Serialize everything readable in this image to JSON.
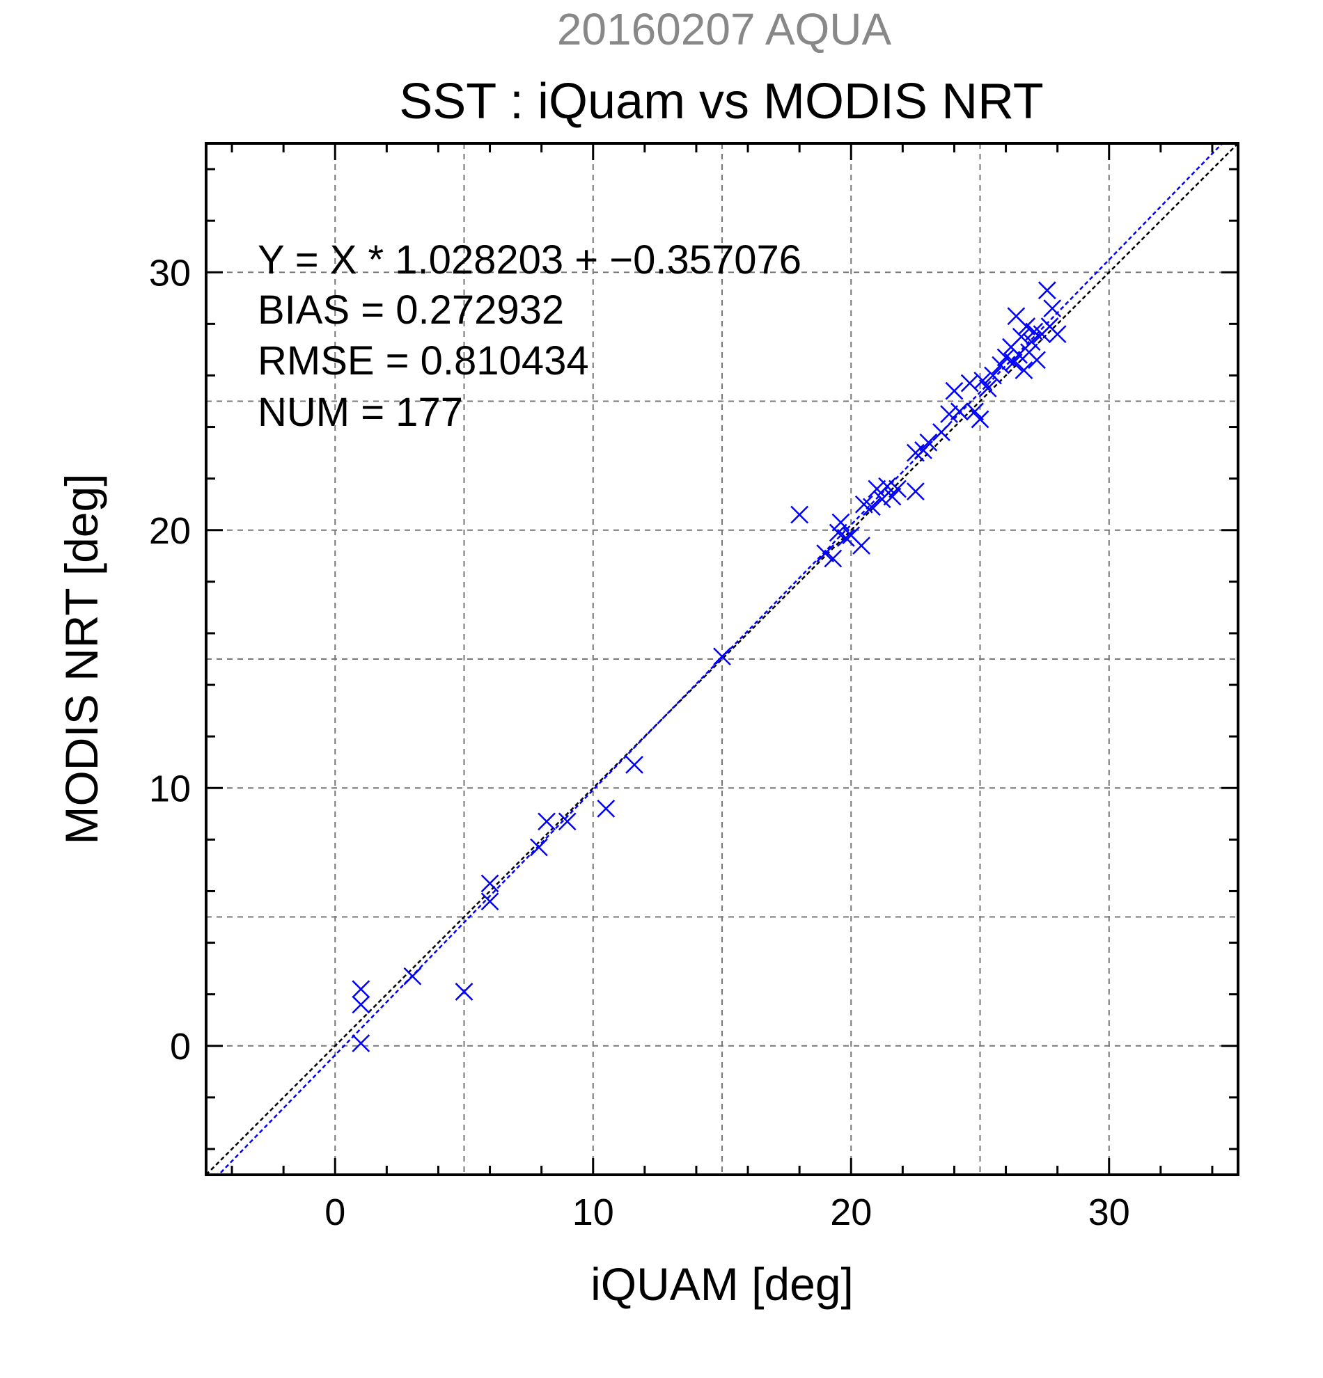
{
  "header": {
    "date_line": "20160207 AQUA",
    "title": "SST : iQuam vs MODIS NRT"
  },
  "stats": {
    "equation": "Y = X * 1.028203 + −0.357076",
    "bias": "BIAS = 0.272932",
    "rmse": "RMSE = 0.810434",
    "num": "NUM = 177"
  },
  "colors": {
    "points": "#0000ff",
    "fit_line": "#0000ff",
    "identity_line": "#000000",
    "title_gray": "#888888"
  },
  "chart_data": {
    "type": "scatter",
    "title": "SST : iQuam vs MODIS NRT",
    "subtitle": "20160207 AQUA",
    "xlabel": "iQUAM [deg]",
    "ylabel": "MODIS NRT [deg]",
    "xlim": [
      -5,
      35
    ],
    "ylim": [
      -5,
      35
    ],
    "xticks": [
      0,
      10,
      20,
      30
    ],
    "yticks": [
      0,
      10,
      20,
      30
    ],
    "grid": true,
    "marker": "x",
    "fit": {
      "slope": 1.028203,
      "intercept": -0.357076
    },
    "identity_line": true,
    "points": [
      [
        1.0,
        0.1
      ],
      [
        1.0,
        1.6
      ],
      [
        1.0,
        2.2
      ],
      [
        3.0,
        2.7
      ],
      [
        5.0,
        2.1
      ],
      [
        6.0,
        5.6
      ],
      [
        6.0,
        6.3
      ],
      [
        7.9,
        7.7
      ],
      [
        8.2,
        8.7
      ],
      [
        9.0,
        8.7
      ],
      [
        10.5,
        9.2
      ],
      [
        11.6,
        10.9
      ],
      [
        15.0,
        15.1
      ],
      [
        18.0,
        20.6
      ],
      [
        19.0,
        19.1
      ],
      [
        19.3,
        18.9
      ],
      [
        19.5,
        19.9
      ],
      [
        19.6,
        20.3
      ],
      [
        19.8,
        19.7
      ],
      [
        20.0,
        19.8
      ],
      [
        20.4,
        19.4
      ],
      [
        20.5,
        21.0
      ],
      [
        20.8,
        20.9
      ],
      [
        21.0,
        21.6
      ],
      [
        21.2,
        21.2
      ],
      [
        21.4,
        21.7
      ],
      [
        21.6,
        21.3
      ],
      [
        21.8,
        21.6
      ],
      [
        22.5,
        21.5
      ],
      [
        22.5,
        23.0
      ],
      [
        22.8,
        23.1
      ],
      [
        23.0,
        23.4
      ],
      [
        23.5,
        23.8
      ],
      [
        23.8,
        24.5
      ],
      [
        24.0,
        25.4
      ],
      [
        24.2,
        24.6
      ],
      [
        24.6,
        25.7
      ],
      [
        24.8,
        24.6
      ],
      [
        25.0,
        24.3
      ],
      [
        25.1,
        25.8
      ],
      [
        25.3,
        25.5
      ],
      [
        25.5,
        26.0
      ],
      [
        25.8,
        26.4
      ],
      [
        26.0,
        26.7
      ],
      [
        26.2,
        27.1
      ],
      [
        26.3,
        26.5
      ],
      [
        26.4,
        28.3
      ],
      [
        26.5,
        26.8
      ],
      [
        26.6,
        27.5
      ],
      [
        26.7,
        26.2
      ],
      [
        26.8,
        27.9
      ],
      [
        26.9,
        26.9
      ],
      [
        27.0,
        27.3
      ],
      [
        27.1,
        27.7
      ],
      [
        27.2,
        26.6
      ],
      [
        27.4,
        27.6
      ],
      [
        27.6,
        29.3
      ],
      [
        27.7,
        27.9
      ],
      [
        27.8,
        28.6
      ],
      [
        28.0,
        27.6
      ]
    ]
  },
  "axes": {
    "x_ticks": [
      "0",
      "10",
      "20",
      "30"
    ],
    "y_ticks": [
      "0",
      "10",
      "20",
      "30"
    ]
  }
}
